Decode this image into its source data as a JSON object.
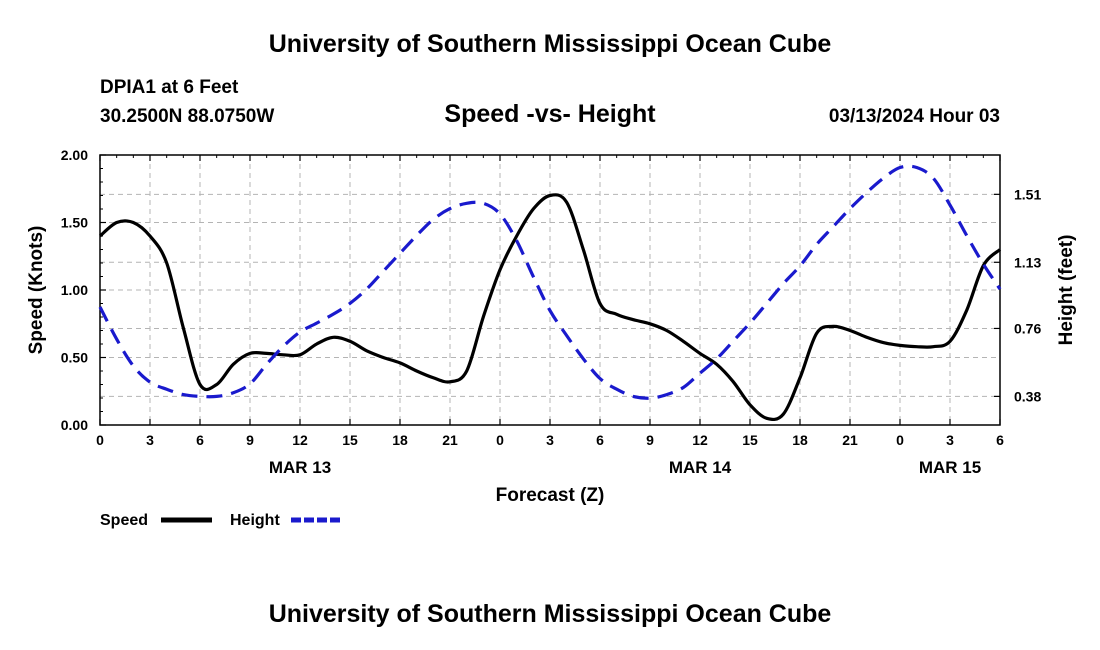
{
  "header": {
    "title": "University of Southern Mississippi Ocean Cube",
    "station": "DPIA1 at 6 Feet",
    "coords": "30.2500N  88.0750W",
    "run_time": "03/13/2024 Hour 03"
  },
  "footer": {
    "title": "University of Southern Mississippi Ocean Cube"
  },
  "chart_data": {
    "type": "line",
    "title": "Speed -vs- Height",
    "xlabel": "Forecast (Z)",
    "ylabel": "Speed (Knots)",
    "y2label": "Height (feet)",
    "x_unit": "hours from 03/13 00Z",
    "xlim": [
      0,
      54
    ],
    "ylim": [
      0,
      2.0
    ],
    "y2lim": [
      0.22,
      1.73
    ],
    "x_tick_values": [
      0,
      3,
      6,
      9,
      12,
      15,
      18,
      21,
      24,
      27,
      30,
      33,
      36,
      39,
      42,
      45,
      48,
      51,
      54
    ],
    "x_tick_labels": [
      "0",
      "3",
      "6",
      "9",
      "12",
      "15",
      "18",
      "21",
      "0",
      "3",
      "6",
      "9",
      "12",
      "15",
      "18",
      "21",
      "0",
      "3",
      "6"
    ],
    "y_ticks": [
      "0.00",
      "0.50",
      "1.00",
      "1.50",
      "2.00"
    ],
    "y2_ticks": [
      "0.38",
      "0.76",
      "1.13",
      "1.51"
    ],
    "date_labels": [
      {
        "label": "MAR 13",
        "x": 12
      },
      {
        "label": "MAR 14",
        "x": 36
      },
      {
        "label": "MAR 15",
        "x": 51
      }
    ],
    "grid": true,
    "legend": [
      {
        "name": "Speed",
        "color": "#000000",
        "dash": "solid"
      },
      {
        "name": "Height",
        "color": "#1a1acd",
        "dash": "dashed"
      }
    ],
    "series": [
      {
        "name": "Speed",
        "axis": "left",
        "color": "#000000",
        "dash": "solid",
        "x": [
          0,
          1,
          2,
          3,
          4,
          5,
          6,
          7,
          8,
          9,
          10,
          11,
          12,
          13,
          14,
          15,
          16,
          17,
          18,
          19,
          20,
          21,
          22,
          23,
          24,
          25,
          26,
          27,
          28,
          29,
          30,
          31,
          32,
          33,
          34,
          35,
          36,
          37,
          38,
          39,
          40,
          41,
          42,
          43,
          44,
          45,
          46,
          47,
          48,
          49,
          50,
          51,
          52,
          53,
          54
        ],
        "values": [
          1.4,
          1.5,
          1.5,
          1.4,
          1.2,
          0.72,
          0.3,
          0.3,
          0.45,
          0.53,
          0.53,
          0.52,
          0.52,
          0.6,
          0.65,
          0.62,
          0.55,
          0.5,
          0.46,
          0.4,
          0.35,
          0.32,
          0.4,
          0.8,
          1.15,
          1.4,
          1.6,
          1.7,
          1.65,
          1.3,
          0.9,
          0.82,
          0.78,
          0.75,
          0.7,
          0.62,
          0.53,
          0.45,
          0.32,
          0.15,
          0.05,
          0.08,
          0.35,
          0.68,
          0.73,
          0.7,
          0.65,
          0.61,
          0.59,
          0.58,
          0.58,
          0.62,
          0.85,
          1.18,
          1.3
        ]
      },
      {
        "name": "Height",
        "axis": "right",
        "color": "#1a1acd",
        "dash": "dashed",
        "x": [
          0,
          1,
          2,
          3,
          4,
          5,
          6,
          7,
          8,
          9,
          10,
          11,
          12,
          13,
          14,
          15,
          16,
          17,
          18,
          19,
          20,
          21,
          22,
          23,
          24,
          25,
          26,
          27,
          28,
          29,
          30,
          31,
          32,
          33,
          34,
          35,
          36,
          37,
          38,
          39,
          40,
          41,
          42,
          43,
          44,
          45,
          46,
          47,
          48,
          49,
          50,
          51,
          52,
          53,
          54
        ],
        "values": [
          0.88,
          0.7,
          0.55,
          0.46,
          0.42,
          0.39,
          0.38,
          0.38,
          0.4,
          0.45,
          0.56,
          0.66,
          0.74,
          0.79,
          0.84,
          0.9,
          0.98,
          1.08,
          1.18,
          1.28,
          1.37,
          1.43,
          1.46,
          1.46,
          1.4,
          1.25,
          1.05,
          0.86,
          0.72,
          0.59,
          0.48,
          0.42,
          0.38,
          0.37,
          0.39,
          0.43,
          0.51,
          0.59,
          0.69,
          0.79,
          0.9,
          1.01,
          1.11,
          1.23,
          1.33,
          1.43,
          1.52,
          1.6,
          1.66,
          1.66,
          1.6,
          1.45,
          1.28,
          1.12,
          0.98
        ]
      }
    ]
  }
}
